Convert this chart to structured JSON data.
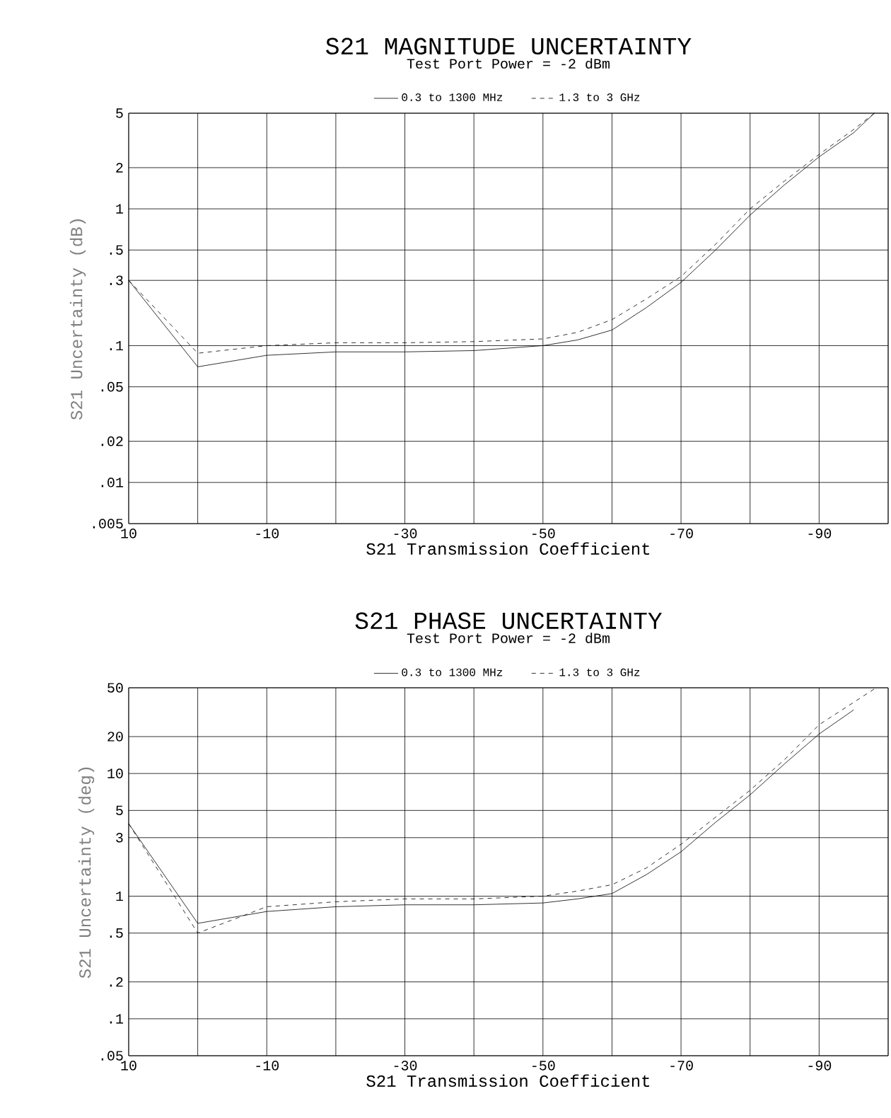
{
  "chart_data": [
    {
      "type": "line",
      "title": "S21 MAGNITUDE UNCERTAINTY",
      "subtitle": "Test Port Power = -2 dBm",
      "xlabel": "S21 Transmission Coefficient",
      "ylabel": "S21 Uncertainty (dB)",
      "x": [
        10,
        0,
        -10,
        -20,
        -30,
        -40,
        -50,
        -55,
        -60,
        -65,
        -70,
        -75,
        -80,
        -85,
        -90,
        -95,
        -98
      ],
      "series": [
        {
          "name": "0.3 to 1300 MHz",
          "color": "#000000",
          "line_style": "solid",
          "values": [
            0.3,
            0.07,
            0.085,
            0.09,
            0.09,
            0.092,
            0.1,
            0.11,
            0.13,
            0.19,
            0.29,
            0.5,
            0.9,
            1.5,
            2.4,
            3.6,
            5
          ]
        },
        {
          "name": "1.3 to 3 GHz",
          "color": "#000000",
          "line_style": "dashed",
          "values": [
            0.3,
            0.088,
            0.1,
            0.105,
            0.105,
            0.107,
            0.112,
            0.125,
            0.155,
            0.22,
            0.32,
            0.55,
            1.0,
            1.6,
            2.5,
            3.8,
            5
          ]
        }
      ],
      "xlim": [
        10,
        -100
      ],
      "xticks": [
        10,
        {
          "value": 0,
          "label": null
        },
        -10,
        {
          "value": -20,
          "label": null
        },
        -30,
        {
          "value": -40,
          "label": null
        },
        -50,
        {
          "value": -60,
          "label": null
        },
        -70,
        {
          "value": -80,
          "label": null
        },
        -90,
        {
          "value": -100,
          "label": null
        }
      ],
      "ylim": [
        0.005,
        5
      ],
      "yticks": [
        {
          "value": 0.005,
          "label": ".005"
        },
        {
          "value": 0.01,
          "label": ".01"
        },
        {
          "value": 0.02,
          "label": ".02"
        },
        {
          "value": 0.05,
          "label": ".05"
        },
        {
          "value": 0.1,
          "label": ".1"
        },
        {
          "value": 0.3,
          "label": ".3"
        },
        {
          "value": 0.5,
          "label": ".5"
        },
        1,
        2,
        5
      ],
      "log": "y",
      "grid": true,
      "legend": "top"
    },
    {
      "type": "line",
      "title": "S21 PHASE UNCERTAINTY",
      "subtitle": "Test Port Power = -2 dBm",
      "xlabel": "S21 Transmission Coefficient",
      "ylabel": "S21 Uncertainty (deg)",
      "x": [
        10,
        0,
        -10,
        -20,
        -30,
        -40,
        -50,
        -55,
        -60,
        -65,
        -70,
        -75,
        -80,
        -85,
        -90,
        -95,
        -98
      ],
      "series": [
        {
          "name": "0.3 to 1300 MHz",
          "color": "#000000",
          "line_style": "solid",
          "values": [
            3.9,
            0.6,
            0.75,
            0.82,
            0.85,
            0.85,
            0.88,
            0.95,
            1.05,
            1.5,
            2.3,
            4,
            6.7,
            12,
            21,
            33,
            null
          ]
        },
        {
          "name": "1.3 to 3 GHz",
          "color": "#000000",
          "line_style": "dashed",
          "values": [
            3.9,
            0.5,
            0.82,
            0.9,
            0.95,
            0.95,
            1.0,
            1.1,
            1.24,
            1.7,
            2.65,
            4.4,
            7.3,
            13,
            25,
            38,
            49
          ]
        }
      ],
      "xlim": [
        10,
        -100
      ],
      "xticks": [
        10,
        {
          "value": 0,
          "label": null
        },
        -10,
        {
          "value": -20,
          "label": null
        },
        -30,
        {
          "value": -40,
          "label": null
        },
        -50,
        {
          "value": -60,
          "label": null
        },
        -70,
        {
          "value": -80,
          "label": null
        },
        -90,
        {
          "value": -100,
          "label": null
        }
      ],
      "ylim": [
        0.05,
        50
      ],
      "yticks": [
        {
          "value": 0.05,
          "label": ".05"
        },
        {
          "value": 0.1,
          "label": ".1"
        },
        {
          "value": 0.2,
          "label": ".2"
        },
        {
          "value": 0.5,
          "label": ".5"
        },
        1,
        3,
        5,
        10,
        20,
        50
      ],
      "log": "y",
      "grid": true,
      "legend": "top"
    }
  ]
}
